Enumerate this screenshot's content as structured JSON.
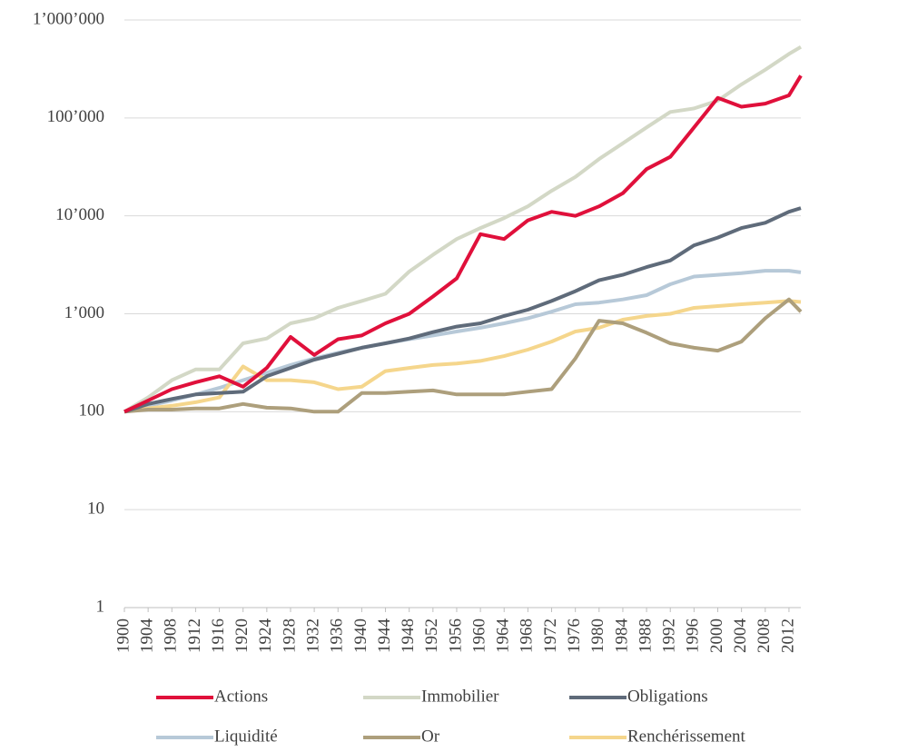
{
  "chart_data": {
    "type": "line",
    "log_scale": true,
    "grid": true,
    "legend": "bottom",
    "x": [
      1900,
      1904,
      1908,
      1912,
      1916,
      1920,
      1924,
      1928,
      1932,
      1936,
      1940,
      1944,
      1948,
      1952,
      1956,
      1960,
      1964,
      1968,
      1972,
      1976,
      1980,
      1984,
      1988,
      1992,
      1996,
      2000,
      2004,
      2008,
      2012,
      2014
    ],
    "xlim": [
      1900,
      2014
    ],
    "xticks": [
      1900,
      1904,
      1908,
      1912,
      1916,
      1920,
      1924,
      1928,
      1932,
      1936,
      1940,
      1944,
      1948,
      1952,
      1956,
      1960,
      1964,
      1968,
      1972,
      1976,
      1980,
      1984,
      1988,
      1992,
      1996,
      2000,
      2004,
      2008,
      2012
    ],
    "ylim": [
      1,
      1000000
    ],
    "yticks": [
      1,
      10,
      100,
      {
        "value": 1000,
        "label": "1’000"
      },
      {
        "value": 10000,
        "label": "10’000"
      },
      {
        "value": 100000,
        "label": "100’000"
      },
      {
        "value": 1000000,
        "label": "1’000’000"
      }
    ],
    "series": [
      {
        "name": "Actions",
        "color": "#e0103b",
        "values": [
          100,
          130,
          170,
          200,
          230,
          180,
          280,
          580,
          380,
          550,
          600,
          800,
          1000,
          1500,
          2300,
          6500,
          5800,
          9000,
          11000,
          10000,
          12500,
          17000,
          30000,
          40000,
          80000,
          160000,
          130000,
          140000,
          170000,
          270000
        ]
      },
      {
        "name": "Immobilier",
        "color": "#d3d8c6",
        "values": [
          100,
          140,
          210,
          270,
          270,
          500,
          560,
          800,
          900,
          1150,
          1350,
          1600,
          2700,
          4000,
          5800,
          7500,
          9500,
          12500,
          18000,
          25000,
          38000,
          55000,
          80000,
          115000,
          125000,
          150000,
          220000,
          310000,
          450000,
          530000
        ]
      },
      {
        "name": "Obligations",
        "color": "#5f6b7a",
        "values": [
          100,
          120,
          135,
          150,
          155,
          160,
          230,
          280,
          340,
          390,
          450,
          500,
          560,
          650,
          740,
          800,
          950,
          1100,
          1350,
          1700,
          2200,
          2500,
          3000,
          3500,
          5000,
          6000,
          7500,
          8500,
          11000,
          12000
        ]
      },
      {
        "name": "Liquidité",
        "color": "#b7c9d8",
        "values": [
          100,
          115,
          130,
          150,
          175,
          210,
          250,
          300,
          350,
          400,
          450,
          500,
          550,
          600,
          660,
          720,
          800,
          900,
          1050,
          1250,
          1300,
          1400,
          1550,
          2000,
          2400,
          2500,
          2600,
          2750,
          2750,
          2650
        ]
      },
      {
        "name": "Or",
        "color": "#ad9f7c",
        "values": [
          100,
          105,
          105,
          108,
          108,
          120,
          110,
          108,
          100,
          100,
          155,
          155,
          160,
          165,
          150,
          150,
          150,
          160,
          170,
          350,
          850,
          800,
          640,
          500,
          450,
          420,
          520,
          900,
          1400,
          1050
        ]
      },
      {
        "name": "Renchérissement",
        "color": "#f5d68c",
        "values": [
          100,
          108,
          115,
          125,
          140,
          290,
          210,
          210,
          200,
          170,
          180,
          260,
          280,
          300,
          310,
          330,
          370,
          430,
          520,
          660,
          720,
          870,
          950,
          1000,
          1150,
          1200,
          1250,
          1300,
          1350,
          1320
        ]
      }
    ]
  }
}
